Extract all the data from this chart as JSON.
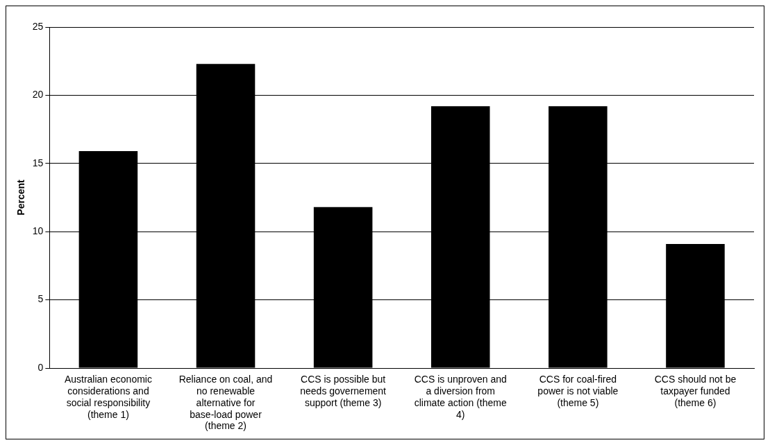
{
  "chart_data": {
    "type": "bar",
    "ylabel": "Percent",
    "categories": [
      "Australian economic considerations and social responsibility (theme 1)",
      "Reliance on coal, and no renewable alternative for base-load power (theme 2)",
      "CCS is possible but needs governement support (theme 3)",
      "CCS is unproven and a diversion from climate action (theme 4)",
      "CCS for coal-fired power is not viable (theme 5)",
      "CCS should not be taxpayer funded (theme 6)"
    ],
    "values": [
      15.9,
      22.3,
      11.8,
      19.2,
      19.2,
      9.1
    ],
    "color": "#000000",
    "ylim": [
      0,
      25
    ],
    "yticks": [
      0,
      5,
      10,
      15,
      20,
      25
    ],
    "grid": "y",
    "legend": false
  }
}
